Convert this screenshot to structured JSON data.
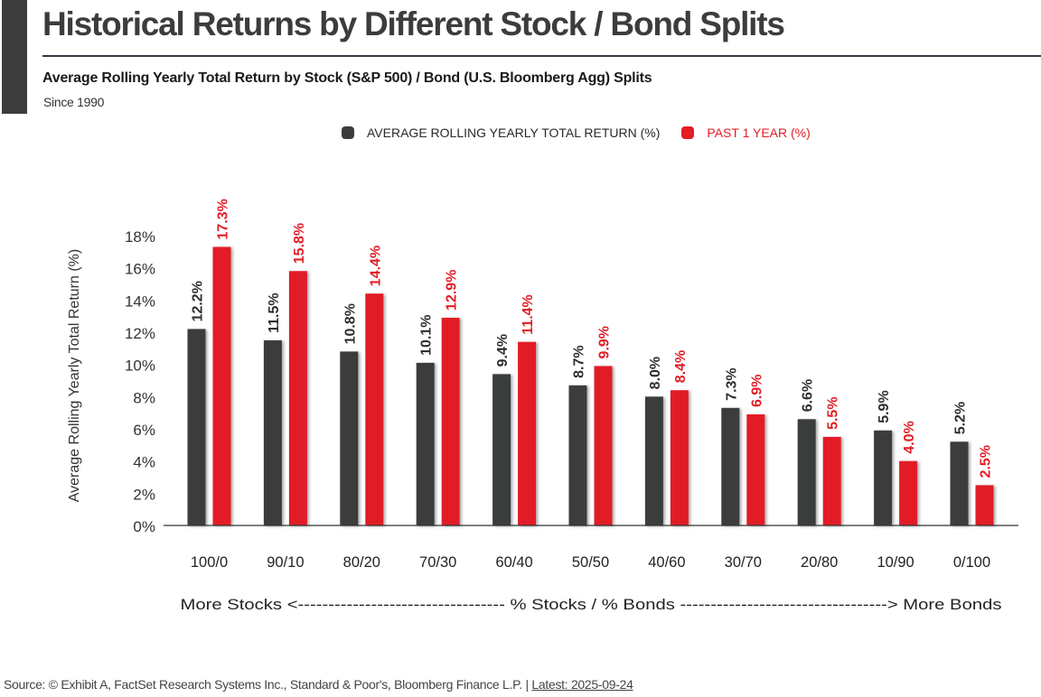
{
  "header": {
    "title": "Historical Returns by Different Stock / Bond Splits",
    "subtitle": "Average Rolling Yearly Total Return by Stock (S&P 500) / Bond (U.S. Bloomberg Agg) Splits",
    "since": "Since 1990"
  },
  "colors": {
    "dark": "#3b3d3d",
    "red": "#e21d26",
    "axis": "#333333"
  },
  "chart_data": {
    "type": "bar",
    "title": "Historical Returns by Different Stock / Bond Splits",
    "subtitle": "Average Rolling Yearly Total Return by Stock (S&P 500) / Bond (U.S. Bloomberg Agg) Splits",
    "ylabel": "Average Rolling Yearly Total Return (%)",
    "xlabel": "More Stocks <---------------------------------- % Stocks / % Bonds ----------------------------------> More Bonds",
    "ylim": [
      0,
      18
    ],
    "yticks": [
      0,
      2,
      4,
      6,
      8,
      10,
      12,
      14,
      16,
      18
    ],
    "ytick_labels": [
      "0%",
      "2%",
      "4%",
      "6%",
      "8%",
      "10%",
      "12%",
      "14%",
      "16%",
      "18%"
    ],
    "grid": false,
    "legend_position": "top-center",
    "categories": [
      "100/0",
      "90/10",
      "80/20",
      "70/30",
      "60/40",
      "50/50",
      "40/60",
      "30/70",
      "20/80",
      "10/90",
      "0/100"
    ],
    "series": [
      {
        "name": "AVERAGE ROLLING YEARLY TOTAL RETURN (%)",
        "color": "#3b3d3d",
        "values": [
          12.2,
          11.5,
          10.8,
          10.1,
          9.4,
          8.7,
          8.0,
          7.3,
          6.6,
          5.9,
          5.2
        ],
        "labels": [
          "12.2%",
          "11.5%",
          "10.8%",
          "10.1%",
          "9.4%",
          "8.7%",
          "8.0%",
          "7.3%",
          "6.6%",
          "5.9%",
          "5.2%"
        ]
      },
      {
        "name": "PAST 1 YEAR (%)",
        "color": "#e21d26",
        "values": [
          17.3,
          15.8,
          14.4,
          12.9,
          11.4,
          9.9,
          8.4,
          6.9,
          5.5,
          4.0,
          2.5
        ],
        "labels": [
          "17.3%",
          "15.8%",
          "14.4%",
          "12.9%",
          "11.4%",
          "9.9%",
          "8.4%",
          "6.9%",
          "5.5%",
          "4.0%",
          "2.5%"
        ]
      }
    ]
  },
  "footer": {
    "source": "Source: © Exhibit A, FactSet Research Systems Inc., Standard & Poor's, Bloomberg Finance L.P. | ",
    "latest": "Latest: 2025-09-24"
  }
}
